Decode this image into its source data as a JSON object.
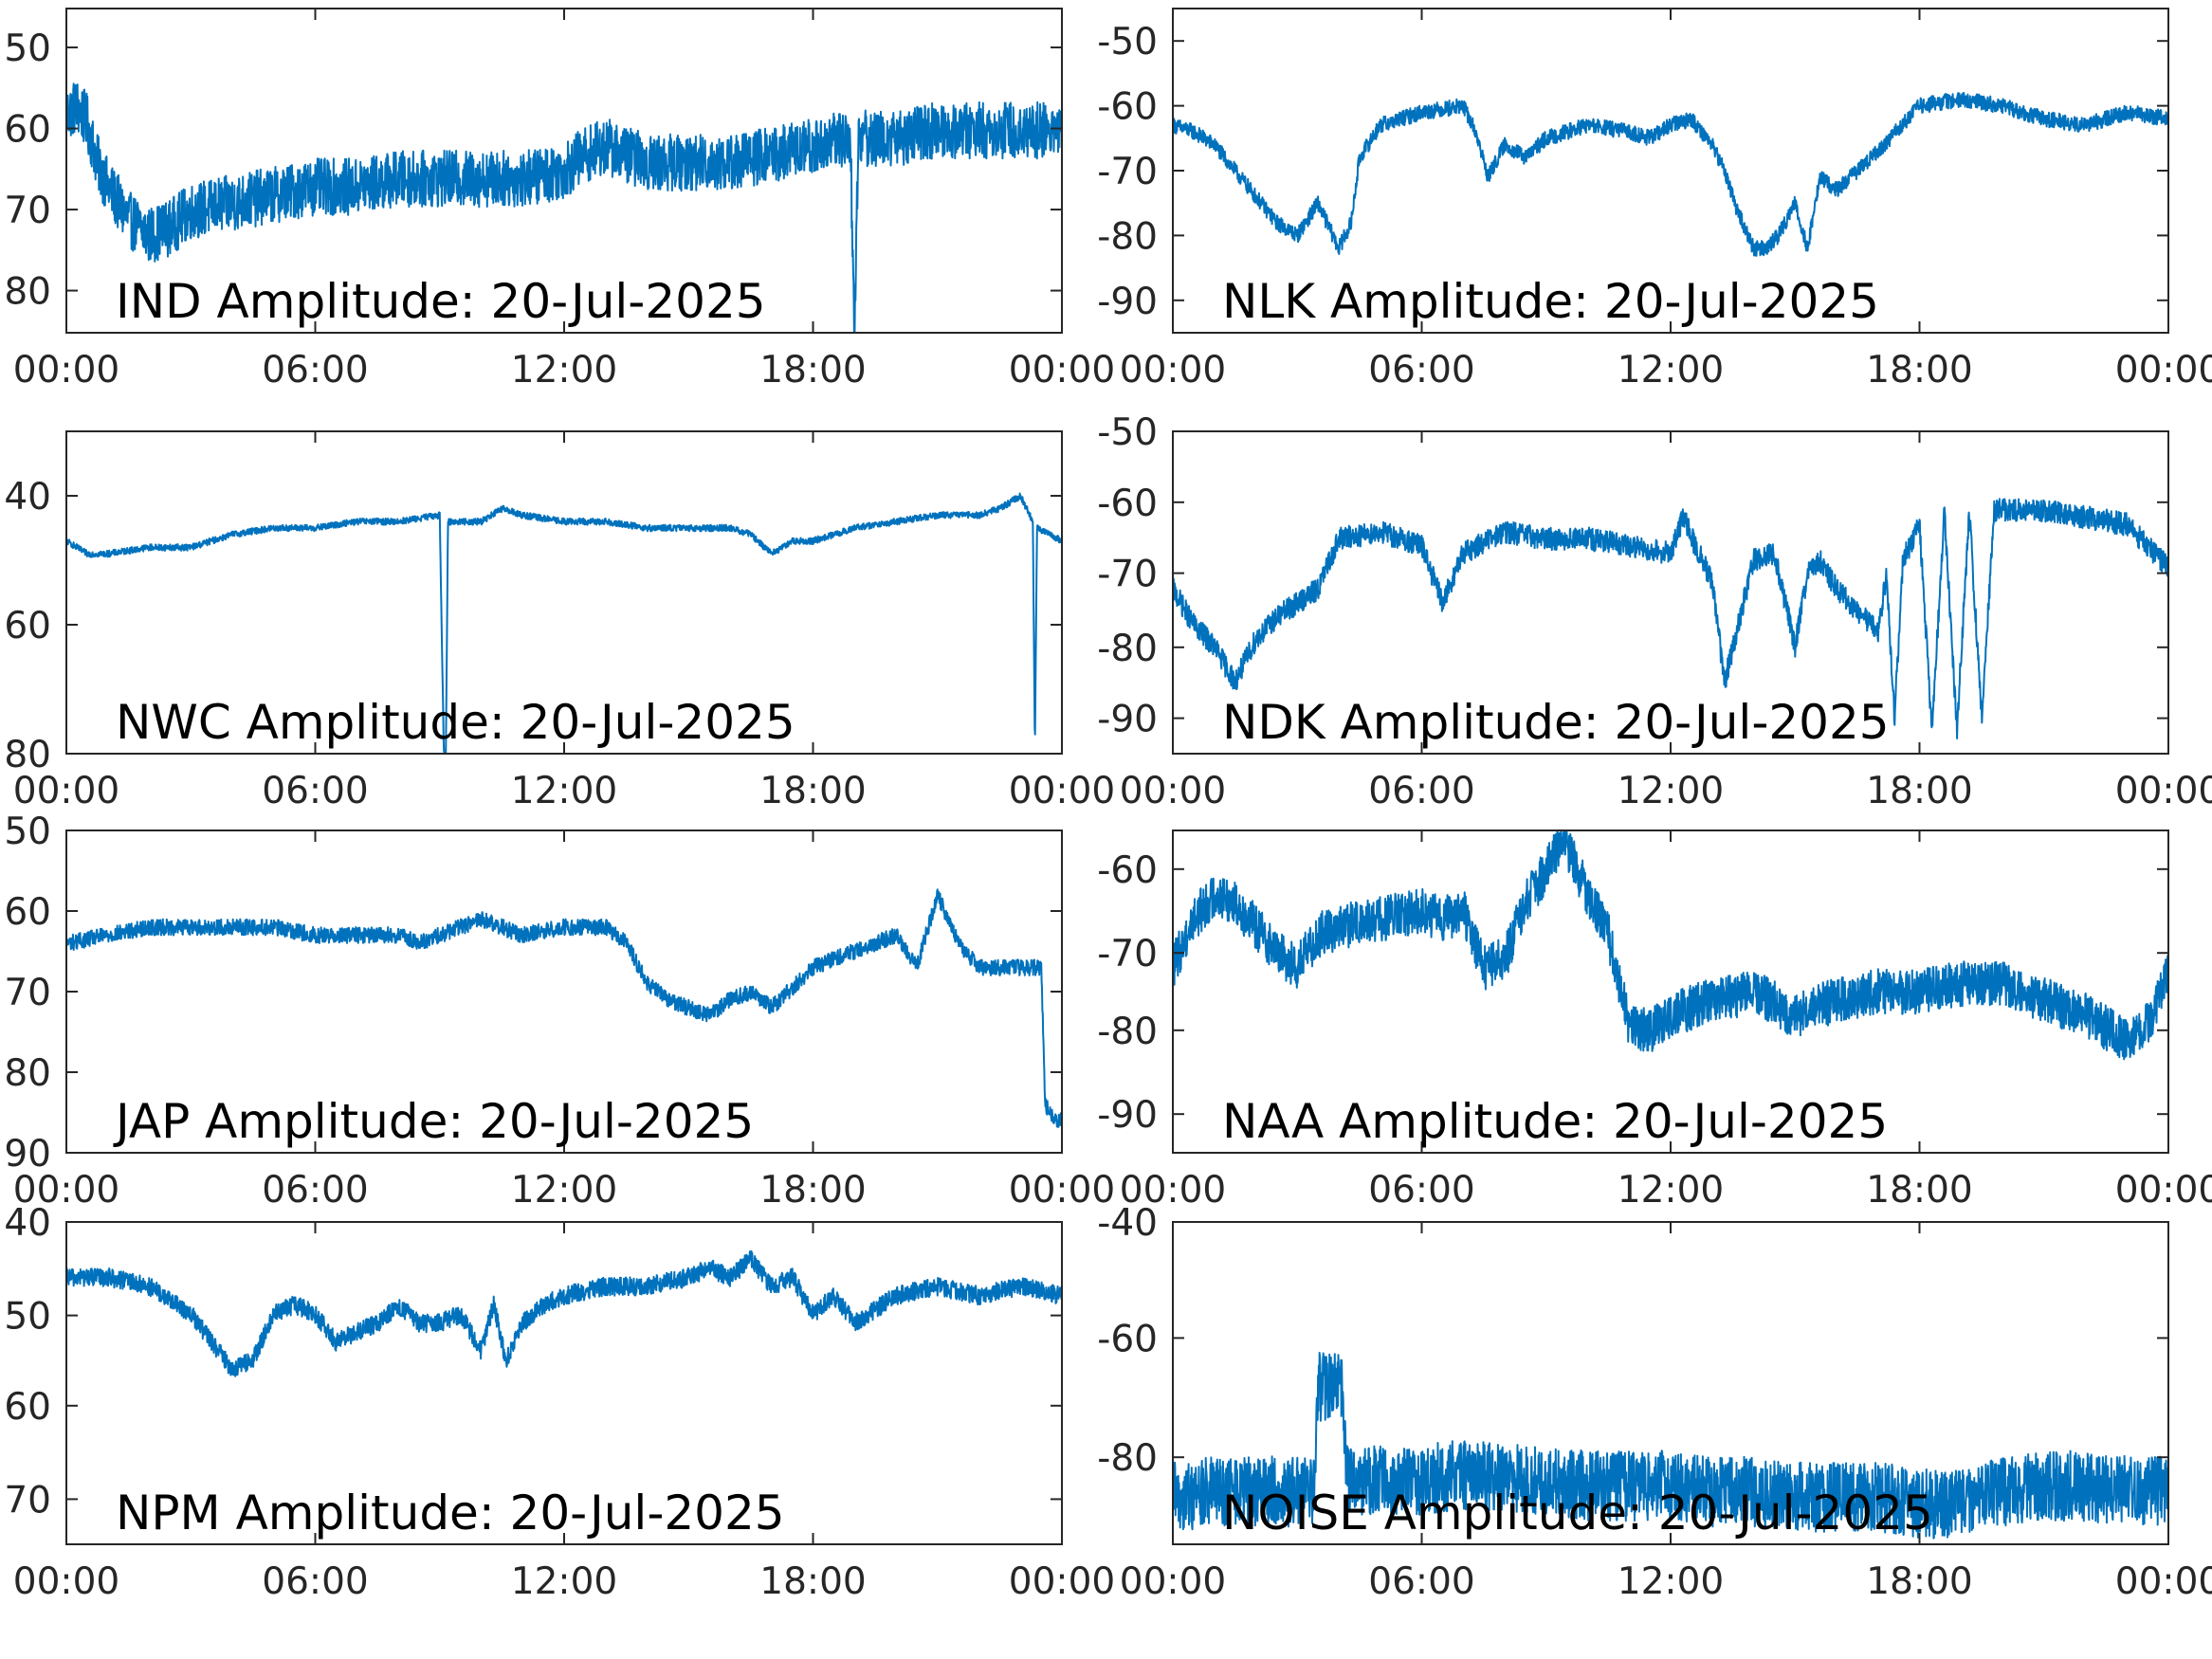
{
  "colors": {
    "trace": "#0072BD",
    "axes": "#262626",
    "background": "#ffffff"
  },
  "chart_data": [
    {
      "type": "line",
      "title": "IND Amplitude: 20-Jul-2025",
      "x_ticks": [
        "00:00",
        "06:00",
        "12:00",
        "18:00",
        "00:00"
      ],
      "xlim": [
        0,
        24
      ],
      "y_ticks": [
        "50",
        "60",
        "70",
        "80"
      ],
      "ylim": [
        -85,
        -45
      ],
      "grid": false,
      "noise": 3.5,
      "series": [
        {
          "x": [
            0,
            0.25,
            0.5,
            0.75,
            1,
            1.5,
            2,
            2.5,
            3,
            4,
            5,
            6,
            7,
            8,
            9,
            10,
            11,
            12,
            12.5,
            13,
            13.5,
            14,
            15,
            16,
            17,
            18,
            18.8,
            18.9,
            19.0,
            19.1,
            19.2,
            20,
            21,
            22,
            23,
            24
          ],
          "y": [
            -58,
            -57,
            -59,
            -64,
            -67,
            -71,
            -73,
            -72,
            -70,
            -69,
            -68,
            -67,
            -67,
            -66,
            -66,
            -66,
            -66,
            -65,
            -63,
            -62,
            -63,
            -64,
            -64,
            -64,
            -63,
            -62,
            -61,
            -61,
            -85,
            -60,
            -61,
            -61,
            -60,
            -60,
            -60,
            -60
          ]
        }
      ]
    },
    {
      "type": "line",
      "title": "NLK Amplitude: 20-Jul-2025",
      "x_ticks": [
        "00:00",
        "06:00",
        "12:00",
        "18:00",
        "00:00"
      ],
      "xlim": [
        0,
        24
      ],
      "y_ticks": [
        "-50",
        "-60",
        "-70",
        "-80",
        "-90"
      ],
      "ylim": [
        -95,
        -45
      ],
      "grid": false,
      "noise": 1.2,
      "series": [
        {
          "x": [
            0,
            0.5,
            1,
            1.5,
            2,
            2.5,
            3,
            3.5,
            4,
            4.3,
            4.5,
            5,
            5.5,
            6,
            7,
            7.3,
            7.6,
            8,
            8.5,
            9,
            10,
            11,
            11.5,
            12,
            12.5,
            13,
            13.3,
            13.6,
            14,
            14.3,
            14.6,
            15,
            15.3,
            15.6,
            16,
            17,
            18,
            19,
            20,
            21,
            22,
            23,
            24
          ],
          "y": [
            -63,
            -64,
            -66,
            -70,
            -74,
            -78,
            -80,
            -75,
            -82,
            -78,
            -68,
            -63,
            -62,
            -61,
            -60,
            -64,
            -71,
            -66,
            -68,
            -65,
            -63,
            -64,
            -65,
            -63,
            -62,
            -66,
            -70,
            -76,
            -82,
            -82,
            -80,
            -75,
            -82,
            -71,
            -73,
            -67,
            -60,
            -59,
            -60,
            -62,
            -63,
            -61,
            -62
          ]
        }
      ]
    },
    {
      "type": "line",
      "title": "NWC Amplitude: 20-Jul-2025",
      "x_ticks": [
        "00:00",
        "06:00",
        "12:00",
        "18:00",
        "00:00"
      ],
      "xlim": [
        0,
        24
      ],
      "y_ticks": [
        "40",
        "60",
        "80"
      ],
      "ylim": [
        -80,
        -30
      ],
      "grid": false,
      "noise": 0.5,
      "series": [
        {
          "x": [
            0,
            0.5,
            1,
            2,
            3,
            4,
            5,
            6,
            7,
            8,
            9,
            9.1,
            9.15,
            9.2,
            10,
            10.5,
            11,
            12,
            13,
            14,
            15,
            16,
            16.5,
            17,
            17.5,
            18,
            19,
            20,
            21,
            22,
            22.5,
            23,
            23.3,
            23.35,
            23.4,
            24
          ],
          "y": [
            -47,
            -49,
            -49,
            -48,
            -48,
            -46,
            -45,
            -45,
            -44,
            -44,
            -43,
            -80,
            -80,
            -44,
            -44,
            -42,
            -43,
            -44,
            -44,
            -45,
            -45,
            -45,
            -46,
            -49,
            -47,
            -47,
            -45,
            -44,
            -43,
            -43,
            -42,
            -40,
            -44,
            -80,
            -45,
            -47
          ]
        }
      ]
    },
    {
      "type": "line",
      "title": "NDK Amplitude: 20-Jul-2025",
      "x_ticks": [
        "00:00",
        "06:00",
        "12:00",
        "18:00",
        "00:00"
      ],
      "xlim": [
        0,
        24
      ],
      "y_ticks": [
        "-50",
        "-60",
        "-70",
        "-80",
        "-90"
      ],
      "ylim": [
        -95,
        -50
      ],
      "grid": false,
      "noise": 1.6,
      "series": [
        {
          "x": [
            0,
            0.5,
            1,
            1.5,
            2,
            2.5,
            3,
            3.5,
            4,
            5,
            6,
            6.5,
            7,
            8,
            9,
            10,
            11,
            12,
            12.3,
            12.6,
            13,
            13.3,
            14,
            14.5,
            15,
            15.3,
            15.6,
            16,
            17,
            17.2,
            17.4,
            17.6,
            18,
            18.3,
            18.6,
            18.9,
            19.2,
            19.5,
            19.8,
            20,
            21,
            22,
            23,
            24
          ],
          "y": [
            -72,
            -77,
            -80,
            -85,
            -79,
            -76,
            -74,
            -72,
            -65,
            -64,
            -66,
            -74,
            -67,
            -64,
            -65,
            -65,
            -66,
            -67,
            -62,
            -66,
            -71,
            -85,
            -68,
            -67,
            -80,
            -70,
            -68,
            -72,
            -78,
            -70,
            -90,
            -68,
            -63,
            -92,
            -61,
            -92,
            -61,
            -90,
            -61,
            -61,
            -61,
            -62,
            -63,
            -69
          ]
        }
      ]
    },
    {
      "type": "line",
      "title": "JAP Amplitude: 20-Jul-2025",
      "x_ticks": [
        "00:00",
        "06:00",
        "12:00",
        "18:00",
        "00:00"
      ],
      "xlim": [
        0,
        24
      ],
      "y_ticks": [
        "50",
        "60",
        "70",
        "80",
        "90"
      ],
      "ylim": [
        -90,
        -50
      ],
      "grid": false,
      "noise": 1.0,
      "series": [
        {
          "x": [
            0,
            1,
            2,
            3,
            4,
            5,
            6,
            7,
            8,
            8.5,
            9,
            10,
            11,
            12,
            13,
            13.5,
            14,
            14.5,
            15,
            15.5,
            16,
            16.5,
            17,
            18,
            19,
            20,
            20.5,
            21,
            21.5,
            22,
            23,
            23.5,
            23.6,
            23.8,
            24
          ],
          "y": [
            -64,
            -63,
            -62,
            -62,
            -62,
            -62,
            -63,
            -63,
            -63,
            -64,
            -63,
            -61,
            -63,
            -62,
            -62,
            -64,
            -69,
            -71,
            -72,
            -73,
            -71,
            -70,
            -72,
            -67,
            -65,
            -63,
            -67,
            -58,
            -64,
            -67,
            -67,
            -67,
            -84,
            -86,
            -86
          ]
        }
      ]
    },
    {
      "type": "line",
      "title": "NAA Amplitude: 20-Jul-2025",
      "x_ticks": [
        "00:00",
        "06:00",
        "12:00",
        "18:00",
        "00:00"
      ],
      "xlim": [
        0,
        24
      ],
      "y_ticks": [
        "-60",
        "-70",
        "-80",
        "-90"
      ],
      "ylim": [
        -95,
        -55
      ],
      "grid": false,
      "noise": 2.8,
      "series": [
        {
          "x": [
            0,
            0.5,
            1,
            1.5,
            2,
            2.5,
            3,
            3.5,
            4,
            5,
            6,
            6.5,
            7,
            7.5,
            8,
            8.5,
            9,
            9.3,
            9.6,
            10,
            10.5,
            11,
            11.5,
            12,
            13,
            14,
            15,
            16,
            17,
            18,
            19,
            20,
            21,
            22,
            23,
            23.5,
            24
          ],
          "y": [
            -72,
            -66,
            -63,
            -64,
            -67,
            -70,
            -72,
            -68,
            -67,
            -66,
            -65,
            -66,
            -65,
            -72,
            -71,
            -64,
            -60,
            -57,
            -58,
            -63,
            -68,
            -79,
            -80,
            -78,
            -76,
            -75,
            -78,
            -76,
            -75,
            -75,
            -74,
            -74,
            -76,
            -78,
            -81,
            -79,
            -73
          ]
        }
      ]
    },
    {
      "type": "line",
      "title": "NPM Amplitude: 20-Jul-2025",
      "x_ticks": [
        "00:00",
        "06:00",
        "12:00",
        "18:00",
        "00:00"
      ],
      "xlim": [
        0,
        24
      ],
      "y_ticks": [
        "40",
        "50",
        "60",
        "70"
      ],
      "ylim": [
        -75,
        -40
      ],
      "grid": false,
      "noise": 1.0,
      "series": [
        {
          "x": [
            0,
            1,
            2,
            3,
            3.5,
            4,
            4.5,
            5,
            5.5,
            6,
            6.5,
            7,
            7.5,
            8,
            8.5,
            9,
            9.5,
            10,
            10.3,
            10.6,
            11,
            11.5,
            12,
            13,
            14,
            15,
            15.5,
            16,
            16.5,
            17,
            17.5,
            18,
            18.5,
            19,
            20,
            21,
            22,
            23,
            24
          ],
          "y": [
            -46,
            -46,
            -47,
            -50,
            -53,
            -56,
            -55,
            -50,
            -49,
            -50,
            -53,
            -52,
            -51,
            -49,
            -51,
            -51,
            -50,
            -54,
            -49,
            -55,
            -51,
            -49,
            -48,
            -47,
            -47,
            -46,
            -45,
            -46,
            -44,
            -47,
            -46,
            -50,
            -48,
            -51,
            -48,
            -47,
            -48,
            -47,
            -48
          ]
        }
      ]
    },
    {
      "type": "line",
      "title": "NOISE Amplitude: 20-Jul-2025",
      "x_ticks": [
        "00:00",
        "06:00",
        "12:00",
        "18:00",
        "00:00"
      ],
      "xlim": [
        0,
        24
      ],
      "y_ticks": [
        "-40",
        "-60",
        "-80"
      ],
      "ylim": [
        -95,
        -40
      ],
      "grid": false,
      "noise": 6.0,
      "series": [
        {
          "x": [
            0,
            1,
            2,
            3,
            3.4,
            3.5,
            4.1,
            4.2,
            5,
            6,
            7,
            8,
            9,
            10,
            11,
            12,
            13,
            14,
            15,
            16,
            17,
            18,
            19,
            20,
            21,
            22,
            23,
            24
          ],
          "y": [
            -87,
            -86,
            -86,
            -86,
            -86,
            -68,
            -68,
            -84,
            -84,
            -84,
            -83,
            -84,
            -84,
            -85,
            -85,
            -85,
            -86,
            -86,
            -87,
            -87,
            -87,
            -88,
            -88,
            -86,
            -85,
            -85,
            -86,
            -86
          ]
        }
      ]
    }
  ]
}
